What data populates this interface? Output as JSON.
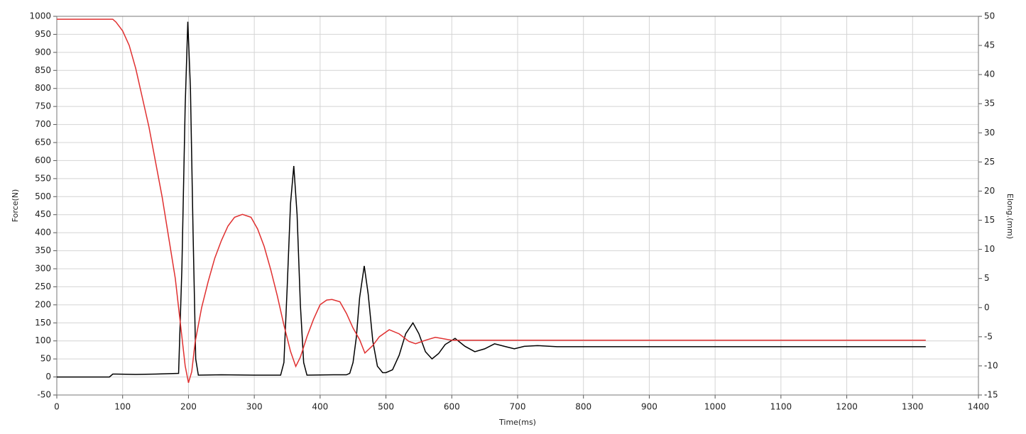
{
  "chart_data": {
    "type": "line",
    "xlabel": "Time(ms)",
    "ylabel": "Force(N)",
    "y2label": "Elong.(mm)",
    "xlim": [
      0,
      1400
    ],
    "xticks": [
      0,
      100,
      200,
      300,
      400,
      500,
      600,
      700,
      800,
      900,
      1000,
      1100,
      1200,
      1300,
      1400
    ],
    "ylim": [
      -50,
      1000
    ],
    "yticks": [
      -50,
      0,
      50,
      100,
      150,
      200,
      250,
      300,
      350,
      400,
      450,
      500,
      550,
      600,
      650,
      700,
      750,
      800,
      850,
      900,
      950,
      1000
    ],
    "y2lim": [
      -15,
      50
    ],
    "y2ticks": [
      -15,
      -10,
      -5,
      0,
      5,
      10,
      15,
      20,
      25,
      30,
      35,
      40,
      45,
      50
    ],
    "grid": true,
    "series": [
      {
        "color": "#000000",
        "axis": "y",
        "x": [
          0,
          80,
          85,
          90,
          120,
          150,
          185,
          190,
          195,
          199,
          203,
          207,
          211,
          215,
          250,
          300,
          340,
          345,
          350,
          355,
          360,
          365,
          370,
          375,
          380,
          420,
          440,
          445,
          450,
          455,
          460,
          467,
          473,
          480,
          487,
          495,
          500,
          510,
          520,
          530,
          541,
          550,
          560,
          570,
          580,
          590,
          605,
          620,
          635,
          650,
          665,
          680,
          695,
          710,
          730,
          760,
          800,
          1000,
          1320
        ],
        "values": [
          0,
          0,
          8,
          8,
          7,
          8,
          10,
          300,
          750,
          985,
          800,
          400,
          50,
          5,
          6,
          5,
          5,
          40,
          250,
          480,
          585,
          450,
          200,
          40,
          5,
          6,
          6,
          10,
          40,
          110,
          220,
          308,
          230,
          100,
          30,
          12,
          12,
          20,
          60,
          120,
          150,
          120,
          70,
          50,
          65,
          90,
          107,
          85,
          70,
          78,
          92,
          85,
          78,
          85,
          87,
          84,
          84,
          84,
          84
        ]
      },
      {
        "color": "#e03030",
        "axis": "y2",
        "x": [
          0,
          85,
          90,
          100,
          110,
          120,
          130,
          140,
          150,
          160,
          170,
          180,
          190,
          195,
          200,
          205,
          210,
          220,
          230,
          240,
          250,
          260,
          270,
          282,
          295,
          305,
          315,
          325,
          335,
          345,
          355,
          363,
          370,
          380,
          390,
          400,
          410,
          418,
          430,
          440,
          450,
          460,
          468,
          480,
          490,
          505,
          520,
          535,
          545,
          560,
          575,
          600,
          650,
          700,
          1320
        ],
        "values": [
          49.5,
          49.5,
          49,
          47.5,
          45,
          41,
          36,
          31,
          25,
          19,
          12,
          5,
          -5,
          -10,
          -12.9,
          -11,
          -6,
          0,
          4.5,
          8.5,
          11.5,
          14,
          15.5,
          16,
          15.5,
          13.5,
          10.5,
          6.5,
          2,
          -3,
          -7.5,
          -10.1,
          -8.5,
          -5,
          -2,
          0.5,
          1.3,
          1.4,
          1,
          -1,
          -3.5,
          -5.5,
          -7.8,
          -6.5,
          -5,
          -3.8,
          -4.5,
          -5.8,
          -6.2,
          -5.6,
          -5.1,
          -5.6,
          -5.6,
          -5.6,
          -5.6
        ]
      }
    ]
  }
}
